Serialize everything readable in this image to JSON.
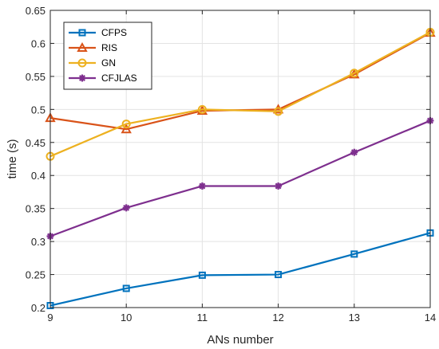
{
  "chart_data": {
    "type": "line",
    "title": "",
    "xlabel": "ANs number",
    "ylabel": "time (s)",
    "xlim": [
      9,
      14
    ],
    "ylim": [
      0.2,
      0.65
    ],
    "x": [
      9,
      10,
      11,
      12,
      13,
      14
    ],
    "xticks": [
      "9",
      "10",
      "11",
      "12",
      "13",
      "14"
    ],
    "yticks": [
      "0.2",
      "0.25",
      "0.3",
      "0.35",
      "0.4",
      "0.45",
      "0.5",
      "0.55",
      "0.6",
      "0.65"
    ],
    "grid": true,
    "legend_position": "top-left",
    "series": [
      {
        "name": "CFPS",
        "color": "#0072BD",
        "marker": "square",
        "values": [
          0.203,
          0.229,
          0.249,
          0.25,
          0.281,
          0.313
        ]
      },
      {
        "name": "RIS",
        "color": "#D95319",
        "marker": "triangle",
        "values": [
          0.487,
          0.47,
          0.498,
          0.5,
          0.553,
          0.616
        ]
      },
      {
        "name": "GN",
        "color": "#EDB120",
        "marker": "circle",
        "values": [
          0.429,
          0.478,
          0.5,
          0.497,
          0.555,
          0.617
        ]
      },
      {
        "name": "CFJLAS",
        "color": "#7E2F8E",
        "marker": "star",
        "values": [
          0.308,
          0.351,
          0.384,
          0.384,
          0.435,
          0.483
        ]
      }
    ]
  }
}
